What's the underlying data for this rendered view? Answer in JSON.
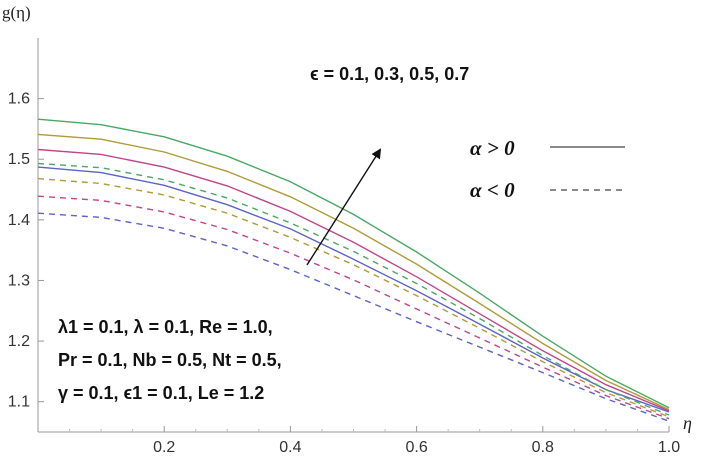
{
  "chart_data": {
    "type": "line",
    "ylabel": "g(η)",
    "xlabel": "η",
    "xlim": [
      0,
      1.0
    ],
    "ylim": [
      1.05,
      1.7
    ],
    "x_ticks": [
      "0.2",
      "0.4",
      "0.6",
      "0.8",
      "1.0"
    ],
    "y_ticks": [
      "1.1",
      "1.2",
      "1.3",
      "1.4",
      "1.5",
      "1.6"
    ],
    "grid": false,
    "annotation_top": "ϵ = 0.1, 0.3, 0.5, 0.7",
    "legend": [
      {
        "label": "α > 0",
        "style": "solid"
      },
      {
        "label": "α < 0",
        "style": "dashed"
      }
    ],
    "parameters": [
      "λ1 = 0.1, λ = 0.1, Re = 1.0,",
      "Pr = 0.1, Nb = 0.5, Nt = 0.5,",
      "γ = 0.1, ϵ1 = 0.1, Le = 1.2"
    ],
    "x": [
      0.0,
      0.1,
      0.2,
      0.3,
      0.4,
      0.5,
      0.6,
      0.7,
      0.8,
      0.9,
      1.0
    ],
    "series": [
      {
        "style": "solid",
        "color": "#5b64c8",
        "values": [
          1.487,
          1.478,
          1.457,
          1.425,
          1.385,
          1.335,
          1.283,
          1.228,
          1.172,
          1.12,
          1.083
        ]
      },
      {
        "style": "solid",
        "color": "#c0458a",
        "values": [
          1.516,
          1.508,
          1.487,
          1.456,
          1.414,
          1.363,
          1.306,
          1.245,
          1.184,
          1.128,
          1.085
        ]
      },
      {
        "style": "solid",
        "color": "#b09a3a",
        "values": [
          1.541,
          1.533,
          1.512,
          1.48,
          1.438,
          1.386,
          1.327,
          1.262,
          1.196,
          1.135,
          1.087
        ]
      },
      {
        "style": "solid",
        "color": "#4aa865",
        "values": [
          1.566,
          1.557,
          1.537,
          1.505,
          1.463,
          1.409,
          1.347,
          1.279,
          1.208,
          1.142,
          1.09
        ]
      },
      {
        "style": "dashed",
        "color": "#5b64c8",
        "values": [
          1.411,
          1.404,
          1.386,
          1.357,
          1.318,
          1.275,
          1.232,
          1.19,
          1.148,
          1.105,
          1.068
        ]
      },
      {
        "style": "dashed",
        "color": "#c0458a",
        "values": [
          1.439,
          1.432,
          1.413,
          1.384,
          1.345,
          1.301,
          1.253,
          1.205,
          1.157,
          1.11,
          1.072
        ]
      },
      {
        "style": "dashed",
        "color": "#b09a3a",
        "values": [
          1.468,
          1.46,
          1.441,
          1.411,
          1.371,
          1.326,
          1.275,
          1.221,
          1.166,
          1.115,
          1.075
        ]
      },
      {
        "style": "dashed",
        "color": "#4aa865",
        "values": [
          1.493,
          1.486,
          1.466,
          1.436,
          1.395,
          1.348,
          1.295,
          1.237,
          1.176,
          1.12,
          1.078
        ]
      }
    ]
  }
}
